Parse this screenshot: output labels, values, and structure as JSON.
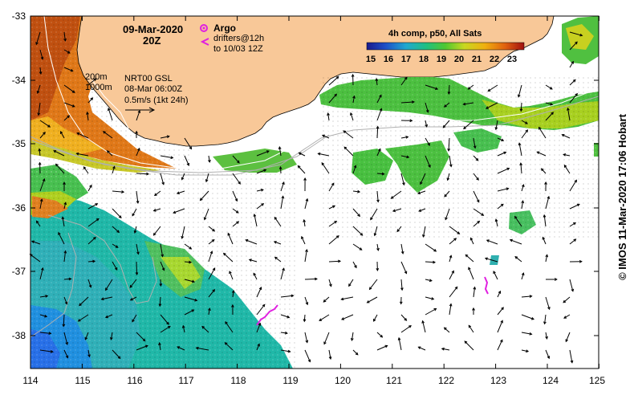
{
  "map": {
    "date": "09-Mar-2020",
    "time": "20Z",
    "legend_argo": "Argo",
    "legend_drifters_line1": "drifters@12h",
    "legend_drifters_line2": "to 10/03 12Z",
    "depth_200": "200m",
    "depth_1000": "1000m",
    "product_line1": "NRT00 GSL",
    "product_line2": "08-Mar 06:00Z",
    "scale_label": "0.5m/s (1kt 24h)",
    "colorbar_title": "4h comp, p50, All Sats",
    "colorbar_ticks": [
      "15",
      "16",
      "17",
      "18",
      "19",
      "20",
      "21",
      "22",
      "23"
    ],
    "lat_labels": [
      "-33",
      "-34",
      "-35",
      "-36",
      "-37",
      "-38"
    ],
    "lon_labels": [
      "114",
      "115",
      "116",
      "117",
      "118",
      "119",
      "120",
      "121",
      "122",
      "123",
      "124",
      "125"
    ],
    "credit": "© IMOS 11-Mar-2020 17:06 Hobart",
    "colors": {
      "land": "#f8c898",
      "argo": "#e020e0",
      "drifter": "#e020e0",
      "sst_warm": "#d06010",
      "sst_mid": "#50c840",
      "sst_cool": "#20b0a0",
      "sst_cold": "#2080e0"
    }
  }
}
